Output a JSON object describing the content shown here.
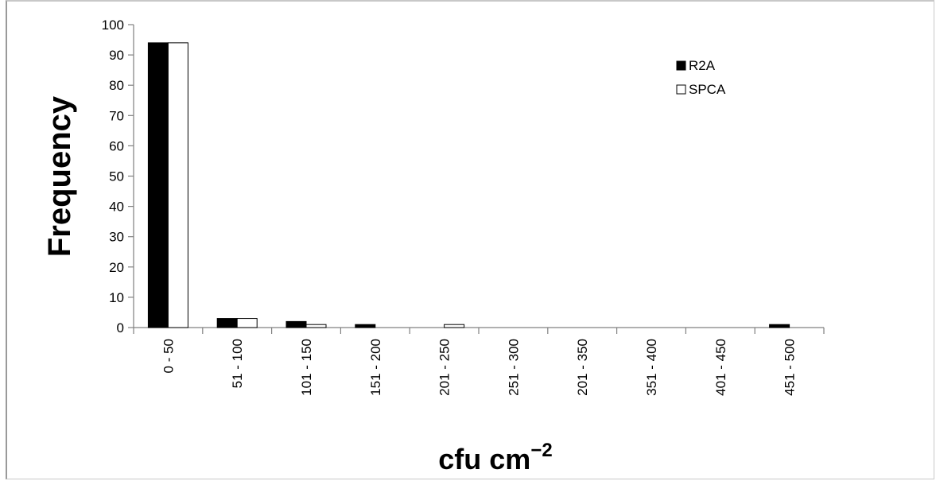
{
  "chart_data": {
    "type": "bar",
    "title": "",
    "xlabel": "cfu cm",
    "xlabel_superscript": "−2",
    "ylabel": "Frequency",
    "ylim": [
      0,
      100
    ],
    "yticks": [
      0,
      10,
      20,
      30,
      40,
      50,
      60,
      70,
      80,
      90,
      100
    ],
    "categories": [
      "0 - 50",
      "51 - 100",
      "101 - 150",
      "151 - 200",
      "201 - 250",
      "251 - 300",
      "201 - 350",
      "351 - 400",
      "401 - 450",
      "451 - 500"
    ],
    "series": [
      {
        "name": "R2A",
        "color": "#000000",
        "values": [
          94,
          3,
          2,
          1,
          0,
          0,
          0,
          0,
          0,
          1
        ]
      },
      {
        "name": "SPCA",
        "color": "#ffffff",
        "values": [
          94,
          3,
          1,
          0,
          1,
          0,
          0,
          0,
          0,
          0
        ]
      }
    ],
    "grid": false,
    "legend_position": "top-right"
  }
}
